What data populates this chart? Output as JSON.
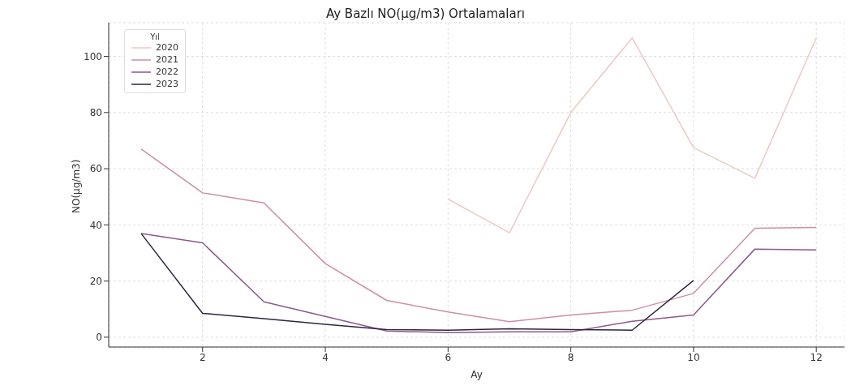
{
  "chart_data": {
    "type": "line",
    "title": "Ay Bazlı NO(µg/m3) Ortalamaları",
    "xlabel": "Ay",
    "ylabel": "NO(µg/m3)",
    "legend_title": "Yıl",
    "x": [
      1,
      2,
      3,
      4,
      5,
      6,
      7,
      8,
      9,
      10,
      11,
      12
    ],
    "series": [
      {
        "name": "2020",
        "color": "#ecc9c4",
        "values": [
          null,
          null,
          null,
          null,
          null,
          49.2,
          37.2,
          80,
          106.6,
          67.5,
          56.6,
          106.6
        ]
      },
      {
        "name": "2021",
        "color": "#cc8fa6",
        "values": [
          67,
          51.4,
          47.8,
          26.2,
          13.1,
          9,
          5.5,
          7.9,
          9.6,
          15.6,
          38.8,
          39.1
        ]
      },
      {
        "name": "2022",
        "color": "#8b5a8c",
        "values": [
          36.9,
          33.6,
          12.6,
          7.4,
          2.2,
          1.6,
          1.9,
          1.9,
          5.7,
          7.9,
          31.4,
          31.1
        ]
      },
      {
        "name": "2023",
        "color": "#2e2541",
        "values": [
          36.9,
          8.5,
          6.6,
          4.6,
          2.7,
          2.5,
          3,
          2.7,
          2.5,
          20.2,
          null,
          null
        ]
      }
    ],
    "xlim": [
      0.47,
      12.46
    ],
    "xticks": [
      2,
      4,
      6,
      8,
      10,
      12
    ],
    "ylim": [
      -3.5,
      112
    ],
    "yticks": [
      0,
      20,
      40,
      60,
      80,
      100
    ],
    "grid": true,
    "legend": "top left",
    "marker": "none",
    "line_style": "solid"
  }
}
